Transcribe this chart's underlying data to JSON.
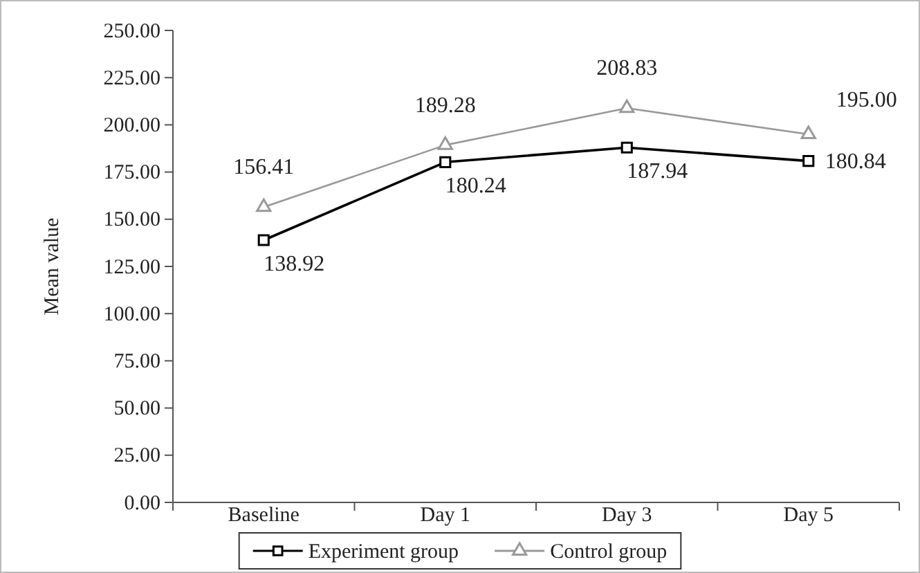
{
  "chart_data": {
    "type": "line",
    "ylabel": "Mean value",
    "categories": [
      "Baseline",
      "Day 1",
      "Day 3",
      "Day 5"
    ],
    "series": [
      {
        "name": "Experiment group",
        "color": "#000000",
        "marker": "square",
        "values": [
          138.92,
          180.24,
          187.94,
          180.84
        ],
        "value_labels": [
          "138.92",
          "180.24",
          "187.94",
          "180.84"
        ]
      },
      {
        "name": "Control group",
        "color": "#999999",
        "marker": "triangle",
        "values": [
          156.41,
          189.28,
          208.83,
          195.0
        ],
        "value_labels": [
          "156.41",
          "189.28",
          "208.83",
          "195.00"
        ]
      }
    ],
    "ylim": [
      0,
      250
    ],
    "yticks": [
      {
        "value": 0,
        "label": "0.00"
      },
      {
        "value": 25,
        "label": "25.00"
      },
      {
        "value": 50,
        "label": "50.00"
      },
      {
        "value": 75,
        "label": "75.00"
      },
      {
        "value": 100,
        "label": "100.00"
      },
      {
        "value": 125,
        "label": "125.00"
      },
      {
        "value": 150,
        "label": "150.00"
      },
      {
        "value": 175,
        "label": "175.00"
      },
      {
        "value": 200,
        "label": "200.00"
      },
      {
        "value": 225,
        "label": "225.00"
      },
      {
        "value": 250,
        "label": "250.00"
      }
    ],
    "grid": false,
    "legend": "bottom",
    "line_style": "solid"
  }
}
